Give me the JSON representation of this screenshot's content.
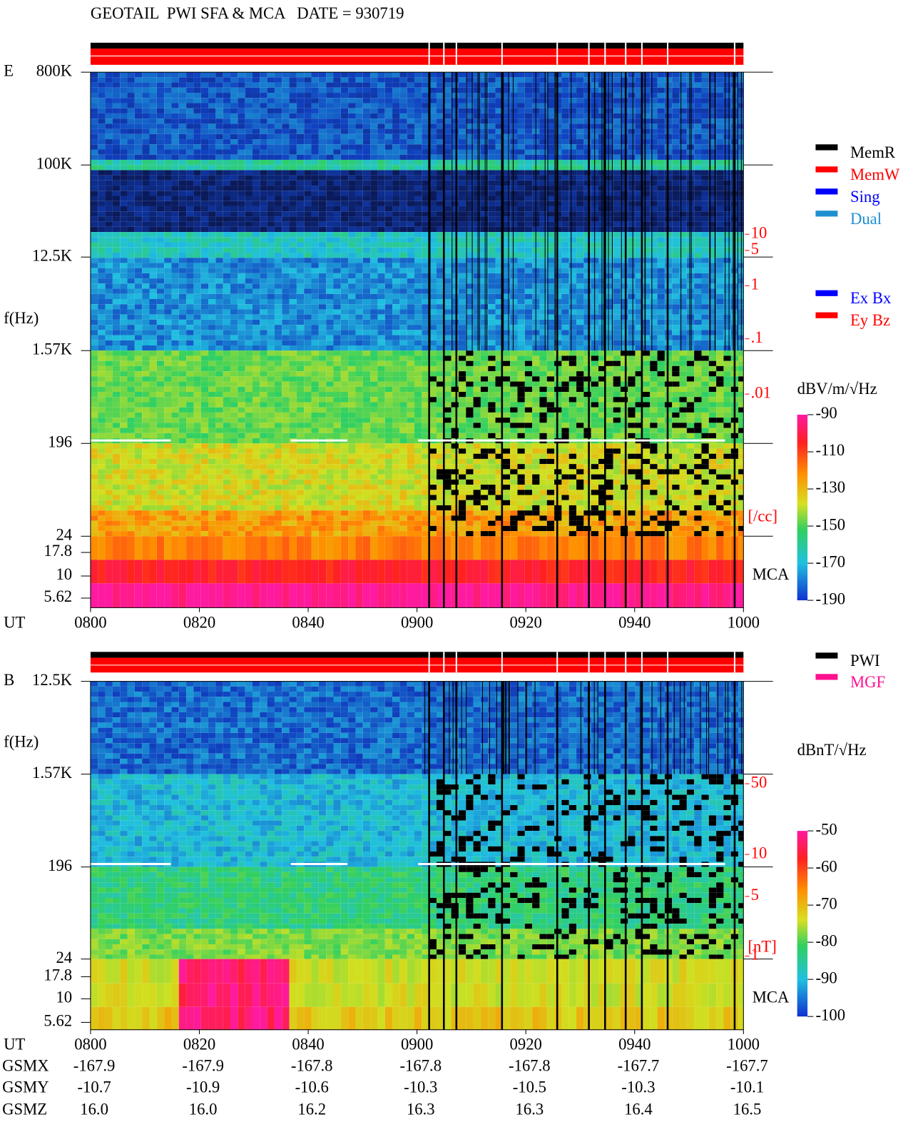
{
  "title": "GEOTAIL  PWI SFA & MCA   DATE = 930719",
  "panels": [
    {
      "label": "E",
      "y_ticks": [
        "800K",
        "100K",
        "12.5K",
        "1.57K",
        "196",
        "24",
        "17.8",
        "10",
        "5.62"
      ],
      "y_axis_label": "f(Hz)",
      "x_axis_label": "UT",
      "x_ticks": [
        "0800",
        "0820",
        "0840",
        "0900",
        "0920",
        "0940",
        "1000"
      ],
      "mca_label": "MCA",
      "right_scale": {
        "ticks": [
          "10",
          "5",
          "1",
          ".1",
          ".01"
        ],
        "unit": "[/cc]"
      },
      "legends": [
        [
          {
            "name": "MemR",
            "color": "#000000"
          },
          {
            "name": "MemW",
            "color": "#ff0000"
          },
          {
            "name": "Sing",
            "color": "#0000ff"
          },
          {
            "name": "Dual",
            "color": "#1e90d0"
          }
        ],
        [
          {
            "name": "Ex Bx",
            "color": "#0000ff"
          },
          {
            "name": "Ey Bz",
            "color": "#ff0000"
          }
        ]
      ],
      "colorbar": {
        "unit": "dBV/m/√Hz",
        "lim": [
          -190,
          -90
        ],
        "ticks": [
          -90,
          -110,
          -130,
          -150,
          -170,
          -190
        ]
      }
    },
    {
      "label": "B",
      "y_ticks": [
        "12.5K",
        "1.57K",
        "196",
        "24",
        "17.8",
        "10",
        "5.62"
      ],
      "y_axis_label": "f(Hz)",
      "x_axis_label": "UT",
      "x_ticks": [
        "0800",
        "0820",
        "0840",
        "0900",
        "0920",
        "0940",
        "1000"
      ],
      "mca_label": "MCA",
      "right_scale": {
        "ticks": [
          "50",
          "10",
          "5",
          "1"
        ],
        "unit": "[nT]"
      },
      "legends": [
        [
          {
            "name": "PWI",
            "color": "#000000"
          },
          {
            "name": "MGF",
            "color": "#ff1090"
          }
        ]
      ],
      "colorbar": {
        "unit": "dBnT/√Hz",
        "lim": [
          -100,
          -50
        ],
        "ticks": [
          -50,
          -60,
          -70,
          -80,
          -90,
          -100
        ]
      }
    }
  ],
  "ephemeris": {
    "rows": [
      {
        "label": "GSMX",
        "values": [
          "-167.9",
          "-167.9",
          "-167.8",
          "-167.8",
          "-167.8",
          "-167.7",
          "-167.7"
        ]
      },
      {
        "label": "GSMY",
        "values": [
          "-10.7",
          "-10.9",
          "-10.6",
          "-10.3",
          "-10.5",
          "-10.3",
          "-10.1"
        ]
      },
      {
        "label": "GSMZ",
        "values": [
          "16.0",
          "16.0",
          "16.2",
          "16.3",
          "16.3",
          "16.4",
          "16.5"
        ]
      }
    ]
  }
}
